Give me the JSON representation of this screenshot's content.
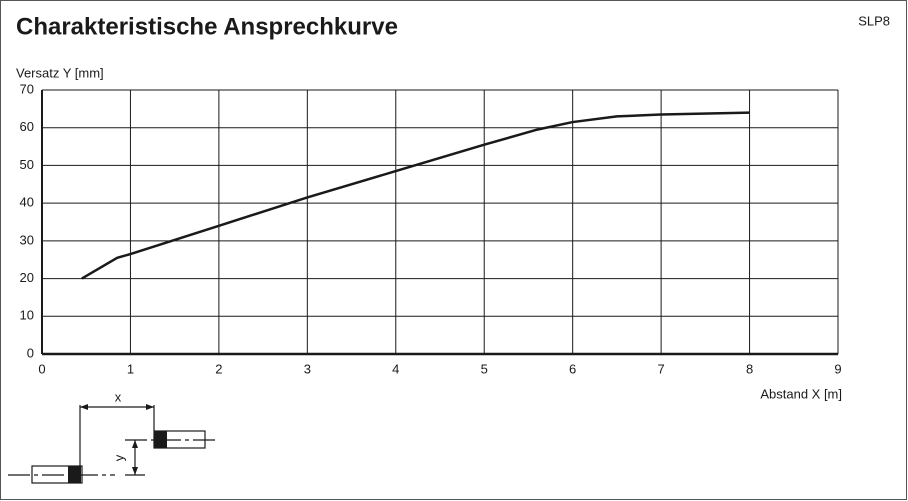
{
  "chart_data": {
    "type": "line",
    "title": "Charakteristische Ansprechkurve",
    "subtitle": "SLP8",
    "ylabel": "Versatz Y [mm]",
    "xlabel": "Abstand X [m]",
    "x": [
      0.45,
      0.85,
      1,
      2,
      3,
      4,
      5,
      5.6,
      6,
      6.5,
      7,
      8
    ],
    "series": [
      {
        "name": null,
        "color": "#1a1a1a",
        "values": [
          20,
          25.5,
          26.5,
          34,
          41.5,
          48.5,
          55.5,
          59.5,
          61.5,
          63,
          63.5,
          64
        ]
      }
    ],
    "xlim": [
      0,
      9
    ],
    "xticks": [
      0,
      1,
      2,
      3,
      4,
      5,
      6,
      7,
      8,
      9
    ],
    "ylim": [
      0,
      70
    ],
    "yticks": [
      0,
      10,
      20,
      30,
      40,
      50,
      60,
      70
    ],
    "grid": true
  },
  "diagram": {
    "x_label": "x",
    "y_label": "y"
  }
}
